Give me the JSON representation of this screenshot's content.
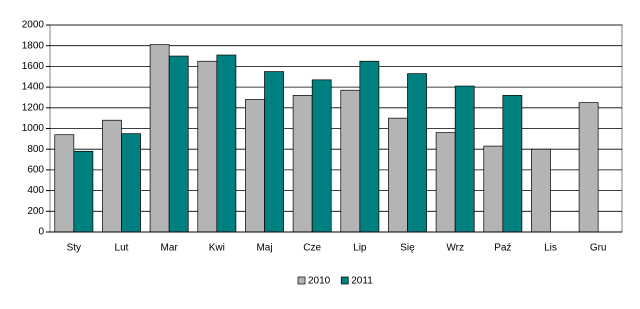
{
  "chart_data": {
    "type": "bar",
    "categories": [
      "Sty",
      "Lut",
      "Mar",
      "Kwi",
      "Maj",
      "Cze",
      "Lip",
      "Się",
      "Wrz",
      "Paź",
      "Lis",
      "Gru"
    ],
    "series": [
      {
        "name": "2010",
        "color": "#b4b4b4",
        "values": [
          940,
          1080,
          1810,
          1650,
          1280,
          1320,
          1370,
          1100,
          960,
          830,
          800,
          1250
        ]
      },
      {
        "name": "2011",
        "color": "#008080",
        "values": [
          780,
          950,
          1700,
          1710,
          1550,
          1470,
          1650,
          1530,
          1410,
          1320,
          null,
          null
        ]
      }
    ],
    "ylim": [
      0,
      2000
    ],
    "yticks": [
      0,
      200,
      400,
      600,
      800,
      1000,
      1200,
      1400,
      1600,
      1800,
      2000
    ],
    "grid": true,
    "legend": "bottom"
  }
}
